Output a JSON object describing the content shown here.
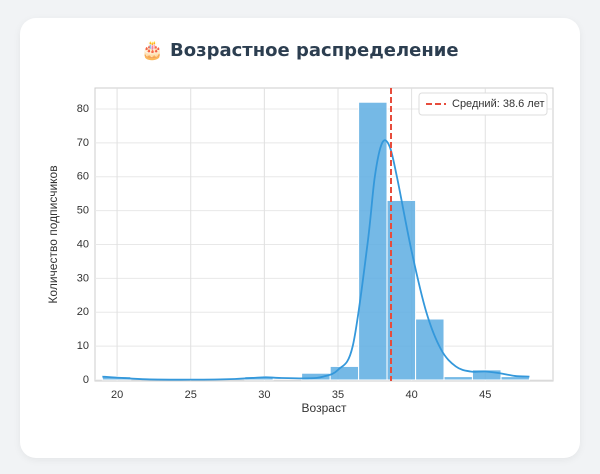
{
  "title": "🎂 Возрастное распределение",
  "chart_data": {
    "type": "histogram",
    "xlabel": "Возраст",
    "ylabel": "Количество подписчиков",
    "bins": [
      19,
      20.93,
      22.87,
      24.8,
      26.73,
      28.67,
      30.6,
      32.53,
      34.47,
      36.4,
      38.33,
      40.27,
      42.2,
      44.13,
      46.07,
      48
    ],
    "values": [
      1,
      0,
      0,
      0,
      0,
      1,
      0,
      2,
      4,
      82,
      53,
      18,
      1,
      3,
      1
    ],
    "color": "#5dade2",
    "kde": {
      "color": "#3498db",
      "x": [
        19,
        20,
        22,
        25,
        28,
        30,
        31,
        33,
        34,
        35,
        36,
        37,
        37.5,
        38,
        38.5,
        39,
        40,
        41,
        42,
        43,
        44,
        45,
        46,
        47,
        48
      ],
      "values": [
        1,
        0.7,
        0.2,
        0.1,
        0.3,
        0.8,
        0.6,
        0.5,
        1,
        3,
        10,
        40,
        60,
        70,
        69,
        60,
        38,
        20,
        9,
        4,
        2.5,
        2.5,
        2,
        1.2,
        1
      ]
    },
    "mean": {
      "value": 38.6,
      "label": "Средний: 38.6 лет",
      "color": "#e74c3c"
    },
    "xlim": [
      18.5,
      49.6
    ],
    "ylim": [
      -0.3,
      86.2
    ],
    "xticks": [
      20,
      25,
      30,
      35,
      40,
      45
    ],
    "yticks": [
      0,
      10,
      20,
      30,
      40,
      50,
      60,
      70,
      80
    ],
    "grid": true,
    "legend": "upper right"
  }
}
